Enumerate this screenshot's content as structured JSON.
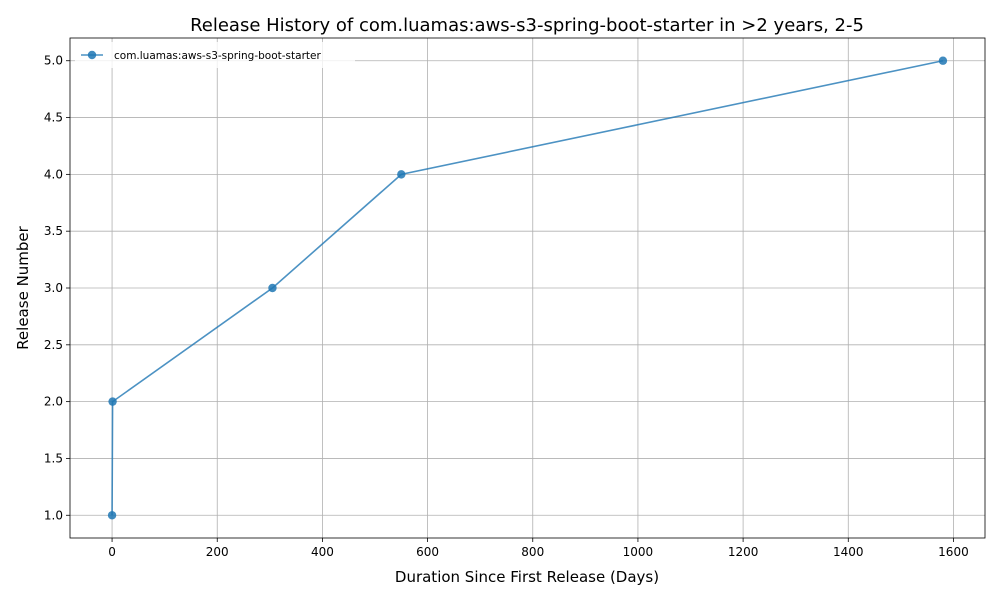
{
  "chart_data": {
    "type": "line",
    "title": "Release History of com.luamas:aws-s3-spring-boot-starter in >2 years, 2-5",
    "xlabel": "Duration Since First Release (Days)",
    "ylabel": "Release Number",
    "xlim": [
      -80,
      1660
    ],
    "ylim": [
      0.8,
      5.2
    ],
    "x_ticks": [
      0,
      200,
      400,
      600,
      800,
      1000,
      1200,
      1400,
      1600
    ],
    "x_tick_labels": [
      "0",
      "200",
      "400",
      "600",
      "800",
      "1000",
      "1200",
      "1400",
      "1600"
    ],
    "y_ticks": [
      1.0,
      1.5,
      2.0,
      2.5,
      3.0,
      3.5,
      4.0,
      4.5,
      5.0
    ],
    "y_tick_labels": [
      "1.0",
      "1.5",
      "2.0",
      "2.5",
      "3.0",
      "3.5",
      "4.0",
      "4.5",
      "5.0"
    ],
    "grid": true,
    "legend_position": "top-left",
    "series": [
      {
        "name": "com.luamas:aws-s3-spring-boot-starter",
        "color": "#1f77b4",
        "marker": "circle",
        "x": [
          0,
          1,
          305,
          550,
          1580
        ],
        "y": [
          1,
          2,
          3,
          4,
          5
        ]
      }
    ]
  }
}
